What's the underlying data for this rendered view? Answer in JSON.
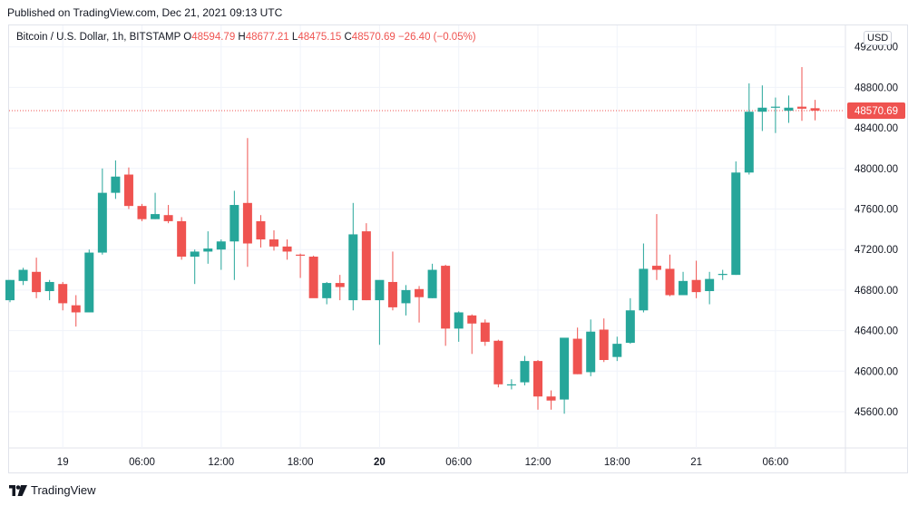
{
  "published": "Published on TradingView.com, Dec 21, 2021 09:13 UTC",
  "legend": {
    "symbol": "Bitcoin / U.S. Dollar, 1h, BITSTAMP",
    "o_label": "O",
    "o_value": "48594.79",
    "h_label": "H",
    "h_value": "48677.21",
    "l_label": "L",
    "l_value": "48475.15",
    "c_label": "C",
    "c_value": "48570.69",
    "change": "−26.40 (−0.05%)"
  },
  "currency": "USD",
  "footer": {
    "brand": "TradingView",
    "logo_icon": "tradingview-logo-icon"
  },
  "colors": {
    "up": "#26a69a",
    "down": "#ef5350",
    "grid": "#f0f3fa",
    "axis_text": "#131722"
  },
  "chart_data": {
    "type": "candlestick",
    "title": "Bitcoin / U.S. Dollar, 1h, BITSTAMP",
    "ylim": [
      45100,
      49500
    ],
    "y_ticks": [
      "45600.00",
      "46000.00",
      "46400.00",
      "46800.00",
      "47200.00",
      "47600.00",
      "48000.00",
      "48400.00",
      "48800.00",
      "49200.00"
    ],
    "x_ticks": [
      {
        "i": 4,
        "label": "19",
        "bold": false
      },
      {
        "i": 10,
        "label": "06:00",
        "bold": false
      },
      {
        "i": 16,
        "label": "12:00",
        "bold": false
      },
      {
        "i": 22,
        "label": "18:00",
        "bold": false
      },
      {
        "i": 28,
        "label": "20",
        "bold": true
      },
      {
        "i": 34,
        "label": "06:00",
        "bold": false
      },
      {
        "i": 40,
        "label": "12:00",
        "bold": false
      },
      {
        "i": 46,
        "label": "18:00",
        "bold": false
      },
      {
        "i": 52,
        "label": "21",
        "bold": false
      },
      {
        "i": 58,
        "label": "06:00",
        "bold": false
      }
    ],
    "last_price": "48570.69",
    "candles": [
      {
        "o": 46700,
        "h": 46900,
        "l": 46680,
        "c": 46900
      },
      {
        "o": 46890,
        "h": 47020,
        "l": 46850,
        "c": 47000
      },
      {
        "o": 46980,
        "h": 47120,
        "l": 46720,
        "c": 46780
      },
      {
        "o": 46790,
        "h": 46900,
        "l": 46700,
        "c": 46880
      },
      {
        "o": 46860,
        "h": 46880,
        "l": 46600,
        "c": 46670
      },
      {
        "o": 46650,
        "h": 46750,
        "l": 46440,
        "c": 46580
      },
      {
        "o": 46580,
        "h": 47200,
        "l": 46580,
        "c": 47170
      },
      {
        "o": 47170,
        "h": 48000,
        "l": 47150,
        "c": 47760
      },
      {
        "o": 47760,
        "h": 48080,
        "l": 47700,
        "c": 47920
      },
      {
        "o": 47940,
        "h": 48010,
        "l": 47600,
        "c": 47630
      },
      {
        "o": 47630,
        "h": 47650,
        "l": 47480,
        "c": 47500
      },
      {
        "o": 47500,
        "h": 47760,
        "l": 47500,
        "c": 47550
      },
      {
        "o": 47540,
        "h": 47640,
        "l": 47460,
        "c": 47480
      },
      {
        "o": 47480,
        "h": 47520,
        "l": 47100,
        "c": 47130
      },
      {
        "o": 47130,
        "h": 47200,
        "l": 46860,
        "c": 47180
      },
      {
        "o": 47180,
        "h": 47380,
        "l": 47060,
        "c": 47210
      },
      {
        "o": 47200,
        "h": 47300,
        "l": 47000,
        "c": 47280
      },
      {
        "o": 47280,
        "h": 47780,
        "l": 46900,
        "c": 47640
      },
      {
        "o": 47660,
        "h": 48300,
        "l": 47030,
        "c": 47260
      },
      {
        "o": 47480,
        "h": 47540,
        "l": 47220,
        "c": 47300
      },
      {
        "o": 47300,
        "h": 47390,
        "l": 47190,
        "c": 47230
      },
      {
        "o": 47230,
        "h": 47300,
        "l": 47100,
        "c": 47180
      },
      {
        "o": 47150,
        "h": 47160,
        "l": 46920,
        "c": 47140
      },
      {
        "o": 47130,
        "h": 47140,
        "l": 46760,
        "c": 46720
      },
      {
        "o": 46720,
        "h": 46880,
        "l": 46660,
        "c": 46870
      },
      {
        "o": 46870,
        "h": 46950,
        "l": 46700,
        "c": 46830
      },
      {
        "o": 46700,
        "h": 47660,
        "l": 46600,
        "c": 47350
      },
      {
        "o": 47380,
        "h": 47460,
        "l": 46700,
        "c": 46700
      },
      {
        "o": 46700,
        "h": 46870,
        "l": 46260,
        "c": 46900
      },
      {
        "o": 46880,
        "h": 47180,
        "l": 46600,
        "c": 46630
      },
      {
        "o": 46670,
        "h": 46850,
        "l": 46550,
        "c": 46800
      },
      {
        "o": 46810,
        "h": 46840,
        "l": 46480,
        "c": 46730
      },
      {
        "o": 46720,
        "h": 47060,
        "l": 46720,
        "c": 47000
      },
      {
        "o": 47040,
        "h": 47050,
        "l": 46250,
        "c": 46420
      },
      {
        "o": 46420,
        "h": 46590,
        "l": 46290,
        "c": 46580
      },
      {
        "o": 46550,
        "h": 46560,
        "l": 46170,
        "c": 46470
      },
      {
        "o": 46480,
        "h": 46510,
        "l": 46250,
        "c": 46290
      },
      {
        "o": 46300,
        "h": 46310,
        "l": 45840,
        "c": 45870
      },
      {
        "o": 45860,
        "h": 45920,
        "l": 45820,
        "c": 45870
      },
      {
        "o": 45890,
        "h": 46150,
        "l": 45860,
        "c": 46100
      },
      {
        "o": 46100,
        "h": 46110,
        "l": 45620,
        "c": 45750
      },
      {
        "o": 45750,
        "h": 45810,
        "l": 45620,
        "c": 45710
      },
      {
        "o": 45720,
        "h": 46320,
        "l": 45580,
        "c": 46330
      },
      {
        "o": 46320,
        "h": 46430,
        "l": 45970,
        "c": 45970
      },
      {
        "o": 45990,
        "h": 46510,
        "l": 45950,
        "c": 46390
      },
      {
        "o": 46410,
        "h": 46520,
        "l": 46090,
        "c": 46110
      },
      {
        "o": 46140,
        "h": 46340,
        "l": 46100,
        "c": 46270
      },
      {
        "o": 46280,
        "h": 46720,
        "l": 46270,
        "c": 46600
      },
      {
        "o": 46600,
        "h": 47260,
        "l": 46580,
        "c": 47010
      },
      {
        "o": 47040,
        "h": 47550,
        "l": 46900,
        "c": 47000
      },
      {
        "o": 47010,
        "h": 47150,
        "l": 46740,
        "c": 46750
      },
      {
        "o": 46750,
        "h": 46980,
        "l": 46750,
        "c": 46890
      },
      {
        "o": 46900,
        "h": 47090,
        "l": 46720,
        "c": 46780
      },
      {
        "o": 46790,
        "h": 46980,
        "l": 46660,
        "c": 46910
      },
      {
        "o": 46960,
        "h": 47000,
        "l": 46900,
        "c": 46960
      },
      {
        "o": 46950,
        "h": 48070,
        "l": 46950,
        "c": 47960
      },
      {
        "o": 47960,
        "h": 48840,
        "l": 47940,
        "c": 48560
      },
      {
        "o": 48560,
        "h": 48820,
        "l": 48370,
        "c": 48600
      },
      {
        "o": 48600,
        "h": 48700,
        "l": 48350,
        "c": 48610
      },
      {
        "o": 48570,
        "h": 48720,
        "l": 48450,
        "c": 48600
      },
      {
        "o": 48610,
        "h": 49000,
        "l": 48470,
        "c": 48590
      },
      {
        "o": 48594.79,
        "h": 48677.21,
        "l": 48475.15,
        "c": 48570.69
      }
    ]
  }
}
